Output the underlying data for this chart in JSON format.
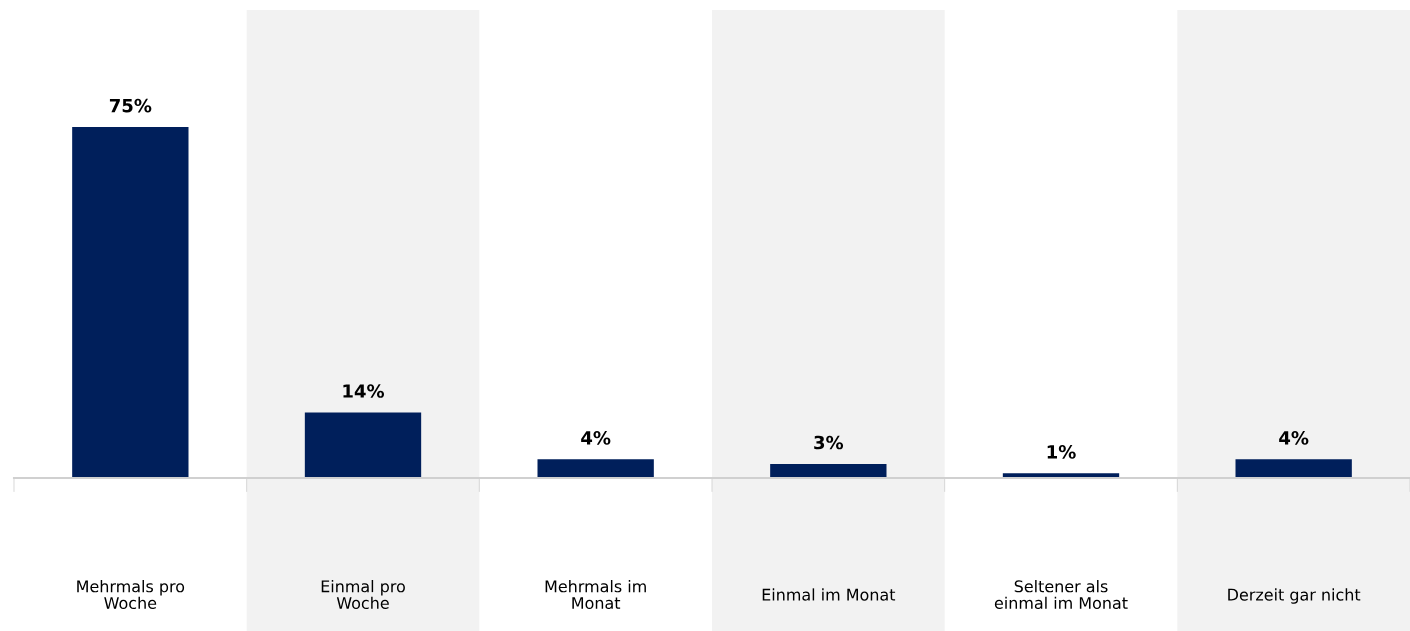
{
  "chart_data": {
    "type": "bar",
    "categories": [
      "Mehrmals pro\nWoche",
      "Einmal pro\nWoche",
      "Mehrmals im\nMonat",
      "Einmal im Monat",
      "Seltener als\neinmal im Monat",
      "Derzeit gar nicht"
    ],
    "values": [
      75,
      14,
      4,
      3,
      1,
      4
    ],
    "value_labels": [
      "75%",
      "14%",
      "4%",
      "3%",
      "1%",
      "4%"
    ],
    "color": "#001f5b",
    "tick_labels": "x",
    "grid": false,
    "legend": false
  }
}
